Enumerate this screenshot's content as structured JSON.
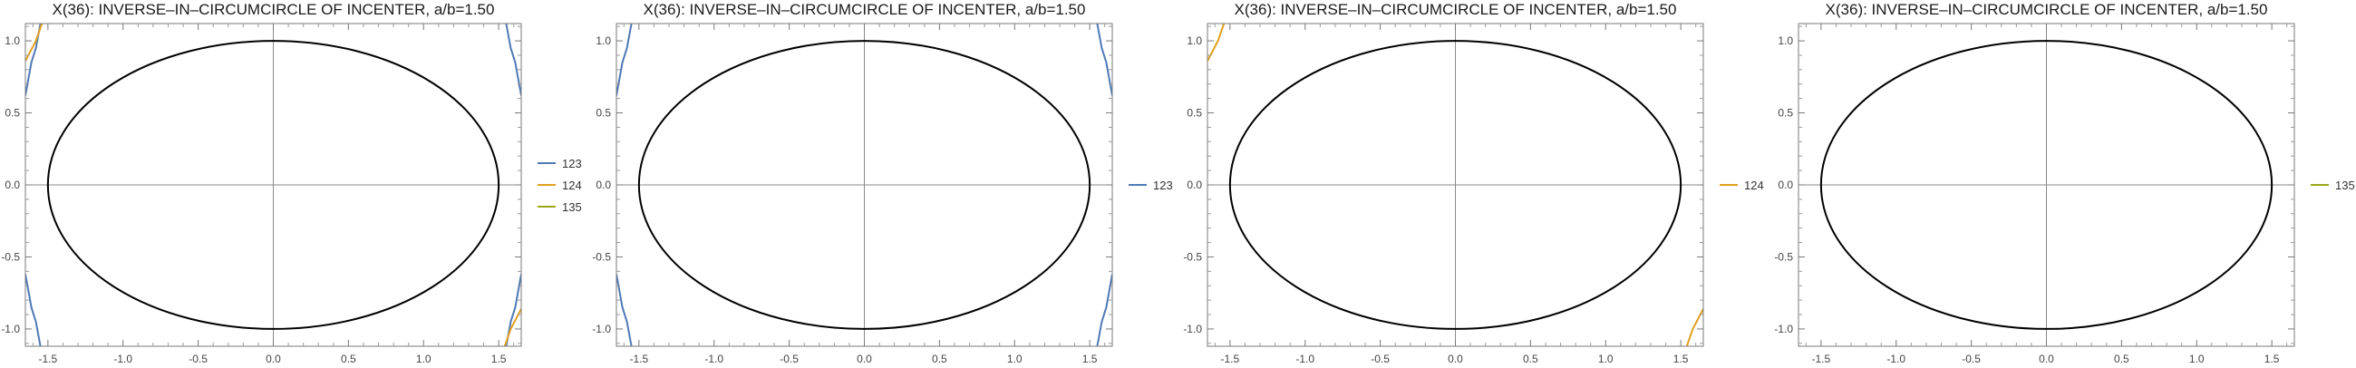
{
  "chart_data": [
    {
      "type": "line",
      "title": "X(36): INVERSE–IN–CIRCUMCIRCLE OF INCENTER, a/b=1.50",
      "xlim": [
        -1.65,
        1.65
      ],
      "ylim": [
        -1.12,
        1.12
      ],
      "x_ticks": [
        "-1.5",
        "-1.0",
        "-0.5",
        "0.0",
        "0.5",
        "1.0",
        "1.5"
      ],
      "y_ticks": [
        "-1.0",
        "-0.5",
        "0.0",
        "0.5",
        "1.0"
      ],
      "ellipse": {
        "a": 1.5,
        "b": 1.0,
        "color": "#000000"
      },
      "legend_position": "right",
      "series": [
        {
          "name": "123",
          "color": "#4e79b5",
          "points": [
            [
              -1.55,
              1.12
            ],
            [
              -1.58,
              0.95
            ],
            [
              -1.61,
              0.85
            ],
            [
              -1.65,
              0.62
            ]
          ]
        },
        {
          "name": "123",
          "color": "#4e79b5",
          "points": [
            [
              1.55,
              1.12
            ],
            [
              1.58,
              0.95
            ],
            [
              1.61,
              0.85
            ],
            [
              1.65,
              0.62
            ]
          ]
        },
        {
          "name": "123",
          "color": "#4e79b5",
          "points": [
            [
              -1.55,
              -1.12
            ],
            [
              -1.58,
              -0.95
            ],
            [
              -1.61,
              -0.85
            ],
            [
              -1.65,
              -0.62
            ]
          ]
        },
        {
          "name": "123",
          "color": "#4e79b5",
          "points": [
            [
              1.55,
              -1.12
            ],
            [
              1.58,
              -0.95
            ],
            [
              1.61,
              -0.85
            ],
            [
              1.65,
              -0.62
            ]
          ]
        },
        {
          "name": "124",
          "color": "#e0a020",
          "points": [
            [
              -1.54,
              1.12
            ],
            [
              -1.58,
              1.0
            ],
            [
              -1.65,
              0.86
            ]
          ]
        },
        {
          "name": "124",
          "color": "#e0a020",
          "points": [
            [
              1.54,
              -1.12
            ],
            [
              1.58,
              -1.0
            ],
            [
              1.65,
              -0.86
            ]
          ]
        },
        {
          "name": "135",
          "color": "#9aa61a",
          "points": []
        }
      ],
      "legend": [
        {
          "name": "123",
          "color": "#4e79b5"
        },
        {
          "name": "124",
          "color": "#e0a020"
        },
        {
          "name": "135",
          "color": "#9aa61a"
        }
      ]
    },
    {
      "type": "line",
      "title": "X(36): INVERSE–IN–CIRCUMCIRCLE OF INCENTER, a/b=1.50",
      "xlim": [
        -1.65,
        1.65
      ],
      "ylim": [
        -1.12,
        1.12
      ],
      "x_ticks": [
        "-1.5",
        "-1.0",
        "-0.5",
        "0.0",
        "0.5",
        "1.0",
        "1.5"
      ],
      "y_ticks": [
        "-1.0",
        "-0.5",
        "0.0",
        "0.5",
        "1.0"
      ],
      "ellipse": {
        "a": 1.5,
        "b": 1.0,
        "color": "#000000"
      },
      "legend_position": "right",
      "series": [
        {
          "name": "123",
          "color": "#4e79b5",
          "points": [
            [
              -1.55,
              1.12
            ],
            [
              -1.58,
              0.95
            ],
            [
              -1.61,
              0.85
            ],
            [
              -1.65,
              0.62
            ]
          ]
        },
        {
          "name": "123",
          "color": "#4e79b5",
          "points": [
            [
              1.55,
              1.12
            ],
            [
              1.58,
              0.95
            ],
            [
              1.61,
              0.85
            ],
            [
              1.65,
              0.62
            ]
          ]
        },
        {
          "name": "123",
          "color": "#4e79b5",
          "points": [
            [
              -1.55,
              -1.12
            ],
            [
              -1.58,
              -0.95
            ],
            [
              -1.61,
              -0.85
            ],
            [
              -1.65,
              -0.62
            ]
          ]
        },
        {
          "name": "123",
          "color": "#4e79b5",
          "points": [
            [
              1.55,
              -1.12
            ],
            [
              1.58,
              -0.95
            ],
            [
              1.61,
              -0.85
            ],
            [
              1.65,
              -0.62
            ]
          ]
        }
      ],
      "legend": [
        {
          "name": "123",
          "color": "#4e79b5"
        }
      ]
    },
    {
      "type": "line",
      "title": "X(36): INVERSE–IN–CIRCUMCIRCLE OF INCENTER, a/b=1.50",
      "xlim": [
        -1.65,
        1.65
      ],
      "ylim": [
        -1.12,
        1.12
      ],
      "x_ticks": [
        "-1.5",
        "-1.0",
        "-0.5",
        "0.0",
        "0.5",
        "1.0",
        "1.5"
      ],
      "y_ticks": [
        "-1.0",
        "-0.5",
        "0.0",
        "0.5",
        "1.0"
      ],
      "ellipse": {
        "a": 1.5,
        "b": 1.0,
        "color": "#000000"
      },
      "legend_position": "right",
      "series": [
        {
          "name": "124",
          "color": "#e0a020",
          "points": [
            [
              -1.54,
              1.12
            ],
            [
              -1.58,
              1.0
            ],
            [
              -1.65,
              0.86
            ]
          ]
        },
        {
          "name": "124",
          "color": "#e0a020",
          "points": [
            [
              1.54,
              -1.12
            ],
            [
              1.58,
              -1.0
            ],
            [
              1.65,
              -0.86
            ]
          ]
        }
      ],
      "legend": [
        {
          "name": "124",
          "color": "#e0a020"
        }
      ]
    },
    {
      "type": "line",
      "title": "X(36): INVERSE–IN–CIRCUMCIRCLE OF INCENTER, a/b=1.50",
      "xlim": [
        -1.65,
        1.65
      ],
      "ylim": [
        -1.12,
        1.12
      ],
      "x_ticks": [
        "-1.5",
        "-1.0",
        "-0.5",
        "0.0",
        "0.5",
        "1.0",
        "1.5"
      ],
      "y_ticks": [
        "-1.0",
        "-0.5",
        "0.0",
        "0.5",
        "1.0"
      ],
      "ellipse": {
        "a": 1.5,
        "b": 1.0,
        "color": "#000000"
      },
      "legend_position": "right",
      "series": [
        {
          "name": "135",
          "color": "#9aa61a",
          "points": []
        }
      ],
      "legend": [
        {
          "name": "135",
          "color": "#9aa61a"
        }
      ]
    }
  ]
}
